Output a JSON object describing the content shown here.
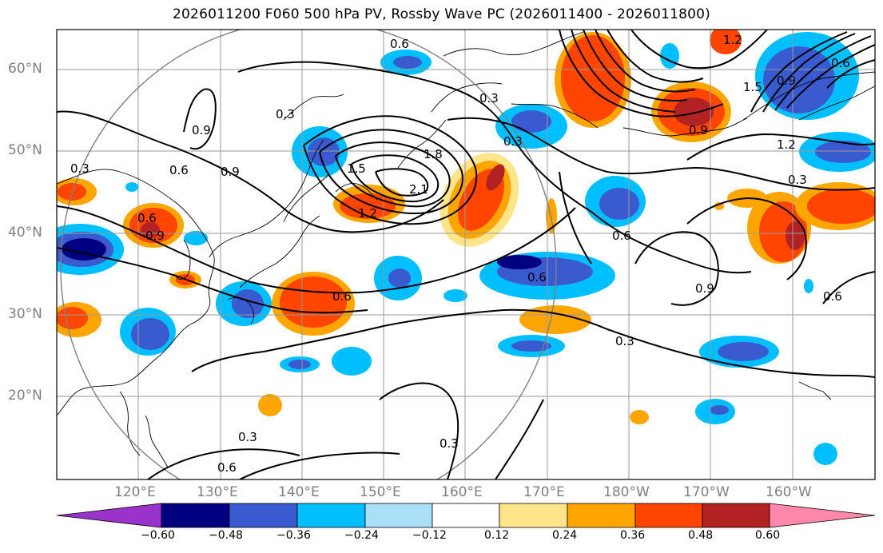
{
  "title": "2026011200 F060 500 hPa PV, Rossby Wave PC (2026011400 - 2026011800)",
  "map": {
    "lat_labels": [
      "60°N",
      "50°N",
      "40°N",
      "30°N",
      "20°N"
    ],
    "lon_labels": [
      "120°E",
      "130°E",
      "140°E",
      "150°E",
      "160°E",
      "170°E",
      "180°W",
      "170°W",
      "160°W"
    ],
    "contour_labels": [
      "0.3",
      "0.6",
      "0.9",
      "1.2",
      "1.5",
      "1.8",
      "2.1",
      "0.3",
      "0.6",
      "0.9",
      "0.3",
      "0.6",
      "0.9",
      "1.2",
      "0.3",
      "0.6",
      "0.6",
      "0.3",
      "0.9",
      "0.6",
      "0.3",
      "0.6",
      "0.6",
      "1.2",
      "0.3",
      "0.9",
      "0.6",
      "1.5",
      "0.3",
      "0.9"
    ]
  },
  "colorbar": {
    "labels": [
      "−0.60",
      "−0.48",
      "−0.36",
      "−0.24",
      "−0.12",
      "0.12",
      "0.24",
      "0.36",
      "0.48",
      "0.60"
    ],
    "colors": [
      "#9933cc",
      "#000080",
      "#3a5bd0",
      "#00bfff",
      "#aadff8",
      "#ffffff",
      "#ffe58a",
      "#ffa500",
      "#ff4500",
      "#b22222",
      "#ff88aa"
    ]
  }
}
